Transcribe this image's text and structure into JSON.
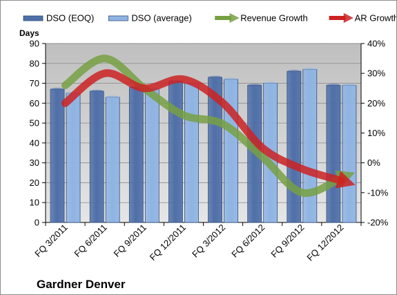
{
  "chart_data": {
    "type": "bar",
    "title": "Gardner Denver",
    "ylabel": "Days",
    "categories": [
      "FQ 3/2011",
      "FQ 6/2011",
      "FQ 9/2011",
      "FQ 12/2011",
      "FQ 3/2012",
      "FQ 6/2012",
      "FQ 9/2012",
      "FQ 12/2012"
    ],
    "ylim": [
      0,
      90
    ],
    "y_ticks": [
      0,
      10,
      20,
      30,
      40,
      50,
      60,
      70,
      80,
      90
    ],
    "y2lim": [
      -0.2,
      0.4
    ],
    "y2_ticks": [
      "-20%",
      "-10%",
      "0%",
      "10%",
      "20%",
      "30%",
      "40%"
    ],
    "y2_tick_values": [
      -0.2,
      -0.1,
      0,
      0.1,
      0.2,
      0.3,
      0.4
    ],
    "series": [
      {
        "name": "DSO (EOQ)",
        "kind": "bar",
        "axis": "left",
        "color": "#4f6fa8",
        "values": [
          67,
          66,
          68,
          71,
          73,
          69,
          76,
          69
        ]
      },
      {
        "name": "DSO (average)",
        "kind": "bar",
        "axis": "left",
        "color": "#8fb4e3",
        "values": [
          65,
          63,
          67,
          70,
          72,
          70,
          77,
          69
        ]
      },
      {
        "name": "Revenue Growth",
        "kind": "arrow-line",
        "axis": "right",
        "color": "#77a043",
        "values": [
          0.26,
          0.35,
          0.25,
          0.16,
          0.13,
          0.02,
          -0.1,
          -0.05
        ]
      },
      {
        "name": "AR Growth",
        "kind": "arrow-line",
        "axis": "right",
        "color": "#cc2222",
        "values": [
          0.2,
          0.3,
          0.25,
          0.28,
          0.2,
          0.05,
          -0.02,
          -0.06
        ]
      }
    ],
    "grid": true,
    "legend_position": "top"
  }
}
